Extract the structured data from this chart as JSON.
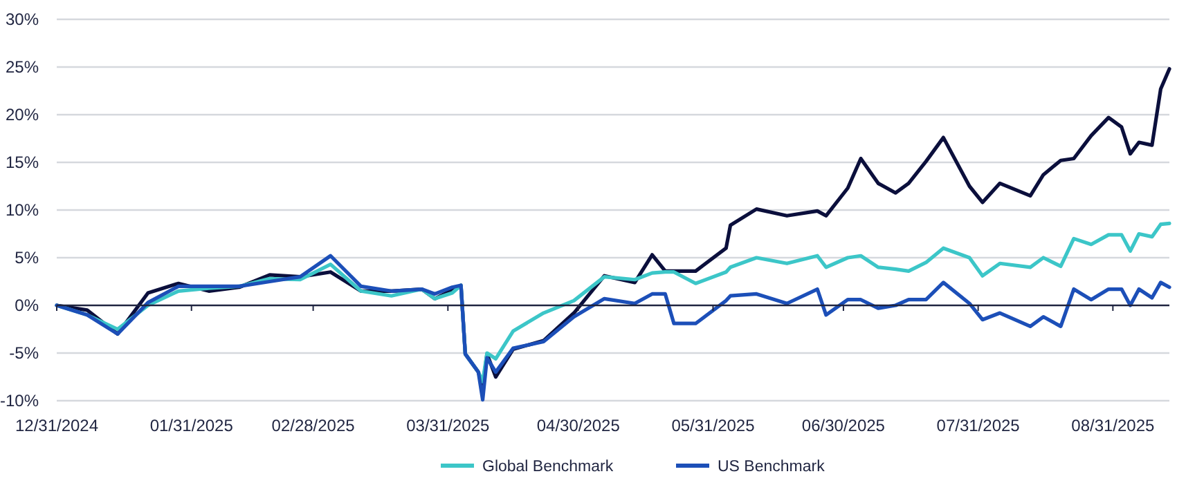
{
  "chart_data": {
    "type": "line",
    "x": [
      "2024-12-31",
      "2025-01-07",
      "2025-01-14",
      "2025-01-21",
      "2025-01-28",
      "2025-02-04",
      "2025-02-11",
      "2025-02-18",
      "2025-02-25",
      "2025-03-04",
      "2025-03-11",
      "2025-03-18",
      "2025-03-25",
      "2025-03-28",
      "2025-04-01",
      "2025-04-03",
      "2025-04-04",
      "2025-04-07",
      "2025-04-08",
      "2025-04-09",
      "2025-04-11",
      "2025-04-15",
      "2025-04-22",
      "2025-04-29",
      "2025-05-06",
      "2025-05-13",
      "2025-05-17",
      "2025-05-20",
      "2025-05-22",
      "2025-05-27",
      "2025-06-03",
      "2025-06-04",
      "2025-06-10",
      "2025-06-17",
      "2025-06-24",
      "2025-06-26",
      "2025-07-01",
      "2025-07-04",
      "2025-07-08",
      "2025-07-12",
      "2025-07-15",
      "2025-07-19",
      "2025-07-23",
      "2025-07-29",
      "2025-08-01",
      "2025-08-05",
      "2025-08-12",
      "2025-08-15",
      "2025-08-19",
      "2025-08-22",
      "2025-08-26",
      "2025-08-30",
      "2025-09-02",
      "2025-09-04",
      "2025-09-06",
      "2025-09-09",
      "2025-09-11",
      "2025-09-13"
    ],
    "series": [
      {
        "color": "#0b0f3c",
        "values": [
          0,
          -0.5,
          -3,
          1.3,
          2.3,
          1.5,
          1.9,
          3.2,
          3,
          3.5,
          1.5,
          1.5,
          1.7,
          0.7,
          1.6,
          2.1,
          -5.1,
          -7,
          -8.5,
          -5.1,
          -7.5,
          -4.6,
          -3.7,
          -0.8,
          3.1,
          2.4,
          5.3,
          3.6,
          3.6,
          3.6,
          6,
          8.4,
          10.1,
          9.4,
          9.9,
          9.4,
          12.3,
          15.4,
          12.8,
          11.8,
          12.8,
          15.1,
          17.6,
          12.5,
          10.8,
          12.8,
          11.5,
          13.7,
          15.2,
          15.4,
          17.8,
          19.7,
          18.7,
          15.9,
          17.1,
          16.8,
          22.7,
          24.8
        ]
      },
      {
        "name": "Global Benchmark",
        "color": "#3cc6c8",
        "values": [
          0,
          -1,
          -2.5,
          0,
          1.5,
          1.8,
          2,
          2.8,
          2.7,
          4.3,
          1.5,
          1,
          1.7,
          0.7,
          1.3,
          2.1,
          -5.1,
          -7,
          -8,
          -5,
          -5.6,
          -2.7,
          -0.8,
          0.5,
          3,
          2.7,
          3.4,
          3.5,
          3.5,
          2.3,
          3.5,
          4,
          5,
          4.4,
          5.2,
          4,
          5,
          5.2,
          4,
          3.8,
          3.6,
          4.5,
          6,
          5,
          3.1,
          4.4,
          4,
          5,
          4.1,
          7,
          6.4,
          7.4,
          7.4,
          5.7,
          7.5,
          7.2,
          8.5,
          8.6
        ]
      },
      {
        "name": "US Benchmark",
        "color": "#1c4fb8",
        "values": [
          0,
          -1,
          -3,
          0.3,
          2,
          2,
          2,
          2.5,
          3,
          5.2,
          2,
          1.5,
          1.7,
          1.2,
          1.9,
          2.1,
          -5.1,
          -7,
          -9.9,
          -5.5,
          -7,
          -4.5,
          -3.8,
          -1.2,
          0.7,
          0.2,
          1.2,
          1.2,
          -1.9,
          -1.9,
          0.5,
          1,
          1.2,
          0.2,
          1.7,
          -1,
          0.6,
          0.6,
          -0.3,
          0,
          0.6,
          0.6,
          2.4,
          0.2,
          -1.5,
          -0.8,
          -2.2,
          -1.2,
          -2.2,
          1.7,
          0.6,
          1.7,
          1.7,
          0,
          1.7,
          0.8,
          2.4,
          1.9
        ]
      }
    ],
    "xlim": [
      "2024-12-31",
      "2025-09-13"
    ],
    "xticks": [
      {
        "value": "2024-12-31",
        "label": "12/31/2024"
      },
      {
        "value": "2025-01-31",
        "label": "01/31/2025"
      },
      {
        "value": "2025-02-28",
        "label": "02/28/2025"
      },
      {
        "value": "2025-03-31",
        "label": "03/31/2025"
      },
      {
        "value": "2025-04-30",
        "label": "04/30/2025"
      },
      {
        "value": "2025-05-31",
        "label": "05/31/2025"
      },
      {
        "value": "2025-06-30",
        "label": "06/30/2025"
      },
      {
        "value": "2025-07-31",
        "label": "07/31/2025"
      },
      {
        "value": "2025-08-31",
        "label": "08/31/2025"
      }
    ],
    "ylim": [
      -10,
      30
    ],
    "yticks": [
      {
        "value": -10,
        "label": "-10%"
      },
      {
        "value": -5,
        "label": "-5%"
      },
      {
        "value": 0,
        "label": "0%"
      },
      {
        "value": 5,
        "label": "5%"
      },
      {
        "value": 10,
        "label": "10%"
      },
      {
        "value": 15,
        "label": "15%"
      },
      {
        "value": 20,
        "label": "20%"
      },
      {
        "value": 25,
        "label": "25%"
      },
      {
        "value": 30,
        "label": "30%"
      }
    ],
    "grid": "y",
    "legend": "bottom",
    "line_style": "solid"
  }
}
